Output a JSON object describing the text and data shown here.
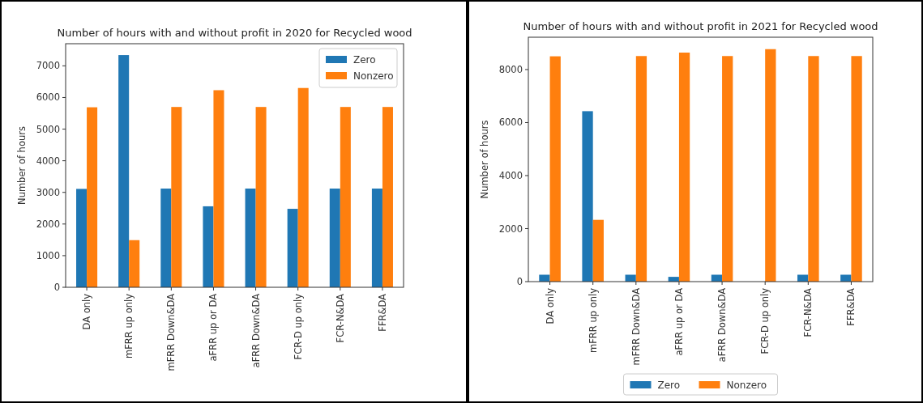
{
  "chart_data": [
    {
      "type": "bar",
      "title": "Number of hours with and without profit in 2020 for Recycled wood",
      "ylabel": "Number of hours",
      "categories": [
        "DA only",
        "mFRR up only",
        "mFRR Down&DA",
        "aFRR up or DA",
        "aFRR Down&DA",
        "FCR-D up only",
        "FCR-N&DA",
        "FFR&DA"
      ],
      "series": [
        {
          "name": "Zero",
          "color": "#1f77b4",
          "values": [
            3110,
            7340,
            3120,
            2560,
            3120,
            2480,
            3120,
            3120
          ]
        },
        {
          "name": "Nonzero",
          "color": "#ff7f0e",
          "values": [
            5690,
            1490,
            5700,
            6230,
            5700,
            6300,
            5700,
            5700
          ]
        }
      ],
      "ylim": [
        0,
        7700
      ],
      "yticks": [
        0,
        1000,
        2000,
        3000,
        4000,
        5000,
        6000,
        7000
      ],
      "legend": "top right"
    },
    {
      "type": "bar",
      "title": "Number of hours with and without profit in 2021 for Recycled wood",
      "ylabel": "Number of hours",
      "categories": [
        "DA only",
        "mFRR up only",
        "mFRR Down&DA",
        "aFRR up or DA",
        "aFRR Down&DA",
        "FCR-D up only",
        "FCR-N&DA",
        "FFR&DA"
      ],
      "series": [
        {
          "name": "Zero",
          "color": "#1f77b4",
          "values": [
            260,
            6430,
            260,
            180,
            260,
            0,
            260,
            260
          ]
        },
        {
          "name": "Nonzero",
          "color": "#ff7f0e",
          "values": [
            8500,
            2330,
            8510,
            8640,
            8510,
            8770,
            8510,
            8510
          ]
        }
      ],
      "ylim": [
        0,
        9220
      ],
      "yticks": [
        0,
        2000,
        4000,
        6000,
        8000
      ],
      "legend": "bottom"
    }
  ]
}
